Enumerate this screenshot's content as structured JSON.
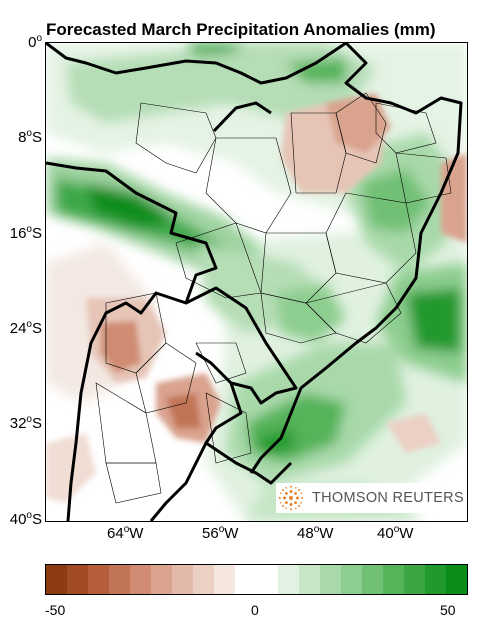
{
  "title": "Forecasted March Precipitation Anomalies (mm)",
  "y_axis": {
    "ticks": [
      {
        "deg": "0",
        "hemi": ""
      },
      {
        "deg": "8",
        "hemi": "S"
      },
      {
        "deg": "16",
        "hemi": "S"
      },
      {
        "deg": "24",
        "hemi": "S"
      },
      {
        "deg": "32",
        "hemi": "S"
      },
      {
        "deg": "40",
        "hemi": "S"
      }
    ]
  },
  "x_axis": {
    "ticks": [
      {
        "deg": "64",
        "hemi": "W"
      },
      {
        "deg": "56",
        "hemi": "W"
      },
      {
        "deg": "48",
        "hemi": "W"
      },
      {
        "deg": "40",
        "hemi": "W"
      }
    ]
  },
  "logo": {
    "text": "THOMSON REUTERS",
    "icon": "thomson-reuters-dot-sphere-icon"
  },
  "colorbar": {
    "min_label": "-50",
    "mid_label": "0",
    "max_label": "50",
    "colors": [
      "#8b3a14",
      "#a04a26",
      "#b45e3c",
      "#c27556",
      "#cf8c72",
      "#d9a38e",
      "#e3b9a9",
      "#ecd0c4",
      "#f5e6e0",
      "#ffffff",
      "#ffffff",
      "#e2f2e2",
      "#c6e6c6",
      "#a9d9aa",
      "#8dcd8f",
      "#71c074",
      "#55b35a",
      "#3ba643",
      "#22992d",
      "#0a8c18"
    ]
  },
  "colors": {
    "dry_strong": "#c98a70",
    "dry": "#e6c5b7",
    "wet_light": "#d8eed8",
    "wet_mid": "#9fd3a0",
    "wet_strong": "#55b35a",
    "wet_max": "#0f8d1e",
    "borders": "#000000"
  }
}
